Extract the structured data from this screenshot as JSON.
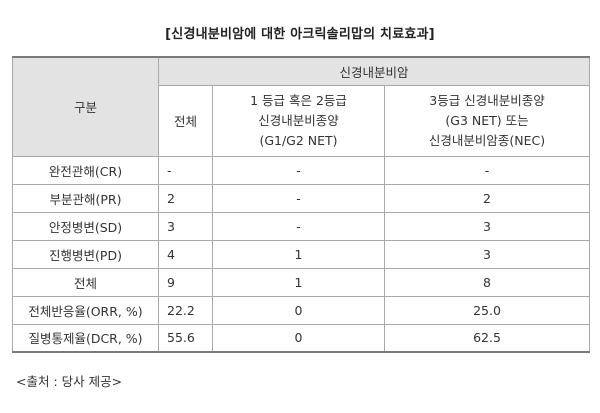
{
  "title": "[신경내분비암에 대한 아크릭솔리맙의 치료효과]",
  "table": {
    "header_group": "구분",
    "header_main": "신경내분비암",
    "col_total": "전체",
    "col_g1g2": [
      "1 등급 혹은 2등급",
      "신경내분비종양",
      "(G1/G2 NET)"
    ],
    "col_g3": [
      "3등급 신경내분비종양",
      "(G3 NET) 또는",
      "신경내분비암종(NEC)"
    ],
    "rows": [
      {
        "label": "완전관해(CR)",
        "total": "-",
        "g1g2": "-",
        "g3": "-"
      },
      {
        "label": "부분관해(PR)",
        "total": "2",
        "g1g2": "-",
        "g3": "2"
      },
      {
        "label": "안정병변(SD)",
        "total": "3",
        "g1g2": "-",
        "g3": "3"
      },
      {
        "label": "진행병변(PD)",
        "total": "4",
        "g1g2": "1",
        "g3": "3"
      },
      {
        "label": "전체",
        "total": "9",
        "g1g2": "1",
        "g3": "8"
      },
      {
        "label": "전체반응율(ORR, %)",
        "total": "22.2",
        "g1g2": "0",
        "g3": "25.0"
      },
      {
        "label": "질병통제율(DCR, %)",
        "total": "55.6",
        "g1g2": "0",
        "g3": "62.5"
      }
    ]
  },
  "source": "<출처 : 당사 제공>"
}
